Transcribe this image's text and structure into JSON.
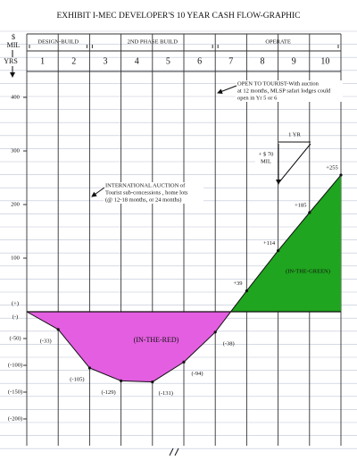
{
  "chart_data": {
    "type": "area",
    "title": "EXHIBIT I-MEC DEVELOPER'S 10 YEAR CASH FLOW-GRAPHIC",
    "y_label_lines": [
      "$",
      "MIL"
    ],
    "x_label": "YRS",
    "phases": [
      "DESIGN-BUILD",
      "2ND PHASE BUILD",
      "OPERATE"
    ],
    "categories": [
      "1",
      "2",
      "3",
      "4",
      "5",
      "6",
      "7",
      "8",
      "9",
      "10"
    ],
    "values": [
      -33,
      -105,
      -129,
      -131,
      -94,
      -38,
      39,
      114,
      185,
      255
    ],
    "value_labels": [
      "(-33)",
      "(-105)",
      "(-129)",
      "(-131)",
      "(-94)",
      "(-38)",
      "+39",
      "+114",
      "+185",
      "+255"
    ],
    "fill_negative": "#e35ee0",
    "fill_positive": "#1fa51f",
    "ylim": [
      -250,
      430
    ],
    "yticks": [
      400,
      300,
      200,
      100,
      {
        "value": -50,
        "label": "(-50)"
      },
      {
        "value": -100,
        "label": "(-100)"
      },
      {
        "value": -150,
        "label": "(-150)"
      },
      {
        "value": -200,
        "label": "(-200)"
      }
    ],
    "sign_labels": [
      "(+)",
      "(-)"
    ],
    "region_labels": [
      "(IN-THE-RED)",
      "(IN-THE-GREEN)"
    ],
    "annotations": {
      "open_to_tourist": [
        "OPEN TO TOURIST-With auction",
        "at 12 months, MLSP safari lodges could",
        "open in Yr  5 or 6"
      ],
      "auction": [
        "INTERNATIONAL AUCTION  of",
        "Tourist sub-concessions , home lots",
        "(@ 12-18 months, or 24 months)"
      ],
      "one_year": "1 YR",
      "slope": [
        "+ $ 70",
        "MIL"
      ]
    }
  }
}
